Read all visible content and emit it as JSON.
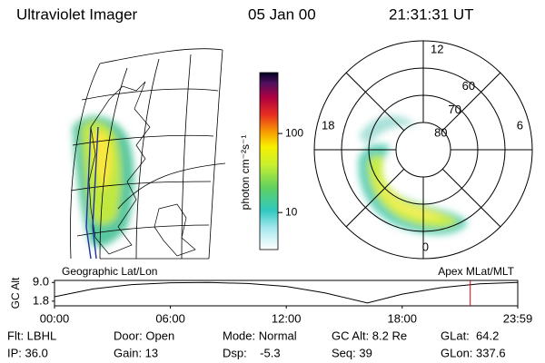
{
  "header": {
    "title": "Ultraviolet Imager",
    "date": "05 Jan 00",
    "time": "21:31:31 UT"
  },
  "map_panel": {
    "label": "Geographic Lat/Lon"
  },
  "polar_panel": {
    "label": "Apex MLat/MLT",
    "mlt_labels": [
      "12",
      "18",
      "6",
      "0"
    ],
    "lat_circles": [
      80,
      70,
      60
    ],
    "outer_lat": 50
  },
  "colorbar": {
    "label": "photon cm⁻²s⁻¹",
    "log": true,
    "lim": [
      3.4,
      590
    ],
    "ticks": [
      10,
      100
    ]
  },
  "altitude_plot": {
    "ylabel": "GC Alt",
    "ylim": [
      0,
      9.8
    ],
    "yticks": [
      {
        "value": 9.0,
        "label": "9.0"
      },
      1.8
    ],
    "xlim": [
      0,
      23.983
    ],
    "xticks": [
      {
        "value": 0,
        "label": "00:00"
      },
      {
        "value": 6,
        "label": "06:00"
      },
      {
        "value": 12,
        "label": "12:00"
      },
      {
        "value": 18,
        "label": "18:00"
      },
      {
        "value": 23.983,
        "label": "23:59"
      }
    ],
    "x": [
      0,
      2,
      4,
      6,
      8,
      10,
      12,
      14,
      16.2,
      18,
      20,
      22,
      23.983
    ],
    "values": [
      3.5,
      6.5,
      8.2,
      8.9,
      9.0,
      8.6,
      7.5,
      5.0,
      1.1,
      4.5,
      7.0,
      8.5,
      9.0
    ],
    "marker": 21.525,
    "marker_color": "#e00000"
  },
  "info": {
    "rows": [
      [
        "Flt: LBHL",
        "Door: Open",
        "Mode: Normal",
        "GC Alt: 8.2 Re",
        "GLat:  64.2"
      ],
      [
        "IP: 36.0",
        "Gain: 13",
        "Dsp:    -5.3",
        "Seq: 39",
        "GLon: 337.6"
      ]
    ]
  }
}
